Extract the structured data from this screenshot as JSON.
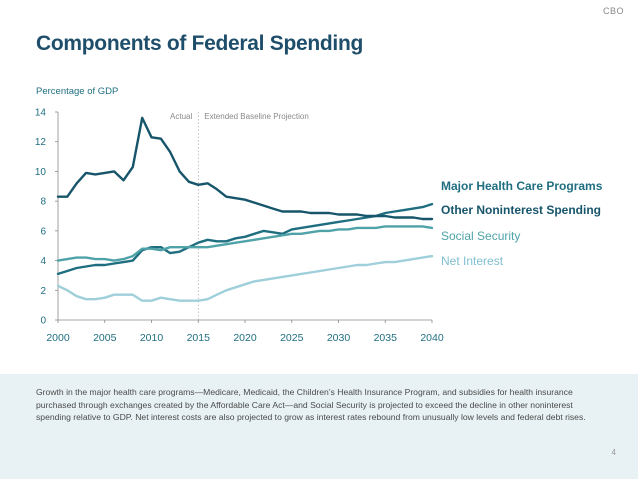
{
  "brand": "CBO",
  "page_number": "4",
  "footer_text": "Growth in the major health care programs—Medicare, Medicaid, the Children’s Health Insurance Program, and subsidies for health insurance purchased through exchanges created by the Affordable Care Act—and Social Security is projected to exceed the decline in other noninterest spending relative to GDP. Net interest costs are also projected to grow as interest rates rebound from unusually low levels and federal debt rises.",
  "chart_data": {
    "type": "line",
    "title": "Components of Federal Spending",
    "ylabel": "Percentage of GDP",
    "xlabel": "",
    "xlim": [
      2000,
      2040
    ],
    "ylim": [
      0,
      14
    ],
    "xticks": [
      2000,
      2005,
      2010,
      2015,
      2020,
      2025,
      2030,
      2035,
      2040
    ],
    "yticks": [
      0,
      2,
      4,
      6,
      8,
      10,
      12,
      14
    ],
    "divider_year": 2015,
    "annotations": {
      "actual": "Actual",
      "projection": "Extended Baseline Projection"
    },
    "x": [
      2000,
      2001,
      2002,
      2003,
      2004,
      2005,
      2006,
      2007,
      2008,
      2009,
      2010,
      2011,
      2012,
      2013,
      2014,
      2015,
      2016,
      2017,
      2018,
      2019,
      2020,
      2021,
      2022,
      2023,
      2024,
      2025,
      2026,
      2027,
      2028,
      2029,
      2030,
      2031,
      2032,
      2033,
      2034,
      2035,
      2036,
      2037,
      2038,
      2039,
      2040
    ],
    "series": [
      {
        "name": "Major Health Care Programs",
        "color": "#1f6e80",
        "values": [
          3.1,
          3.3,
          3.5,
          3.6,
          3.7,
          3.7,
          3.8,
          3.9,
          4.0,
          4.7,
          4.9,
          4.9,
          4.5,
          4.6,
          4.9,
          5.2,
          5.4,
          5.3,
          5.3,
          5.5,
          5.6,
          5.8,
          6.0,
          5.9,
          5.8,
          6.1,
          6.2,
          6.3,
          6.4,
          6.5,
          6.6,
          6.7,
          6.8,
          6.9,
          7.0,
          7.2,
          7.3,
          7.4,
          7.5,
          7.6,
          7.8
        ]
      },
      {
        "name": "Other Noninterest Spending",
        "color": "#17556b",
        "values": [
          8.3,
          8.3,
          9.2,
          9.9,
          9.8,
          9.9,
          10.0,
          9.4,
          10.3,
          13.6,
          12.3,
          12.2,
          11.3,
          10.0,
          9.3,
          9.1,
          9.2,
          8.8,
          8.3,
          8.2,
          8.1,
          7.9,
          7.7,
          7.5,
          7.3,
          7.3,
          7.3,
          7.2,
          7.2,
          7.2,
          7.1,
          7.1,
          7.1,
          7.0,
          7.0,
          7.0,
          6.9,
          6.9,
          6.9,
          6.8,
          6.8
        ]
      },
      {
        "name": "Social Security",
        "color": "#4fa3a8",
        "values": [
          4.0,
          4.1,
          4.2,
          4.2,
          4.1,
          4.1,
          4.0,
          4.1,
          4.3,
          4.8,
          4.8,
          4.7,
          4.9,
          4.9,
          4.9,
          4.9,
          4.9,
          5.0,
          5.1,
          5.2,
          5.3,
          5.4,
          5.5,
          5.6,
          5.7,
          5.8,
          5.8,
          5.9,
          6.0,
          6.0,
          6.1,
          6.1,
          6.2,
          6.2,
          6.2,
          6.3,
          6.3,
          6.3,
          6.3,
          6.3,
          6.2
        ]
      },
      {
        "name": "Net Interest",
        "color": "#9fcfda",
        "values": [
          2.3,
          2.0,
          1.6,
          1.4,
          1.4,
          1.5,
          1.7,
          1.7,
          1.7,
          1.3,
          1.3,
          1.5,
          1.4,
          1.3,
          1.3,
          1.3,
          1.4,
          1.7,
          2.0,
          2.2,
          2.4,
          2.6,
          2.7,
          2.8,
          2.9,
          3.0,
          3.1,
          3.2,
          3.3,
          3.4,
          3.5,
          3.6,
          3.7,
          3.7,
          3.8,
          3.9,
          3.9,
          4.0,
          4.1,
          4.2,
          4.3
        ]
      }
    ]
  }
}
